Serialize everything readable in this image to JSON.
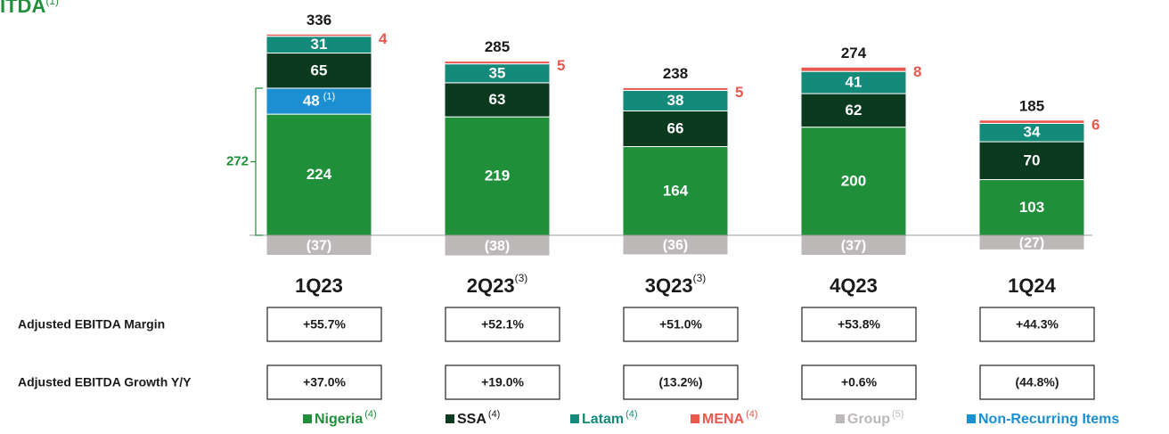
{
  "chart_data": {
    "type": "stacked_bar",
    "title": "ITDA",
    "title_note": "(1)",
    "categories": [
      "1Q23",
      "2Q23",
      "3Q23",
      "4Q23",
      "1Q24"
    ],
    "category_notes": [
      null,
      "(3)",
      "(3)",
      null,
      null
    ],
    "series": [
      {
        "name": "Nigeria",
        "note": "(4)",
        "color": "#1f8f3a",
        "values": [
          224,
          219,
          164,
          200,
          103
        ]
      },
      {
        "name": "Non-Recurring Items",
        "color": "#1b8fd2",
        "values": [
          48,
          null,
          null,
          null,
          null
        ],
        "value_note": "(1)"
      },
      {
        "name": "SSA",
        "note": "(4)",
        "color": "#0b3a1e",
        "values": [
          65,
          63,
          66,
          62,
          70
        ]
      },
      {
        "name": "Latam",
        "note": "(4)",
        "color": "#138a7a",
        "values": [
          31,
          35,
          38,
          41,
          34
        ]
      },
      {
        "name": "MENA",
        "note": "(4)",
        "color": "#e8584f",
        "values": [
          4,
          5,
          5,
          8,
          6
        ]
      },
      {
        "name": "Group",
        "note": "(5)",
        "color": "#bdb8b8",
        "values": [
          -37,
          -38,
          -36,
          -37,
          -27
        ],
        "value_labels": [
          "(37)",
          "(38)",
          "(36)",
          "(37)",
          "(27)"
        ]
      }
    ],
    "totals": [
      336,
      285,
      238,
      274,
      185
    ],
    "bracket_total": 272,
    "ylim": [
      -40,
      400
    ],
    "rows": [
      {
        "label": "Adjusted EBITDA Margin",
        "values": [
          "+55.7%",
          "+52.1%",
          "+51.0%",
          "+53.8%",
          "+44.3%"
        ]
      },
      {
        "label": "Adjusted EBITDA Growth Y/Y",
        "values": [
          "+37.0%",
          "+19.0%",
          "(13.2%)",
          "+0.6%",
          "(44.8%)"
        ]
      }
    ]
  }
}
